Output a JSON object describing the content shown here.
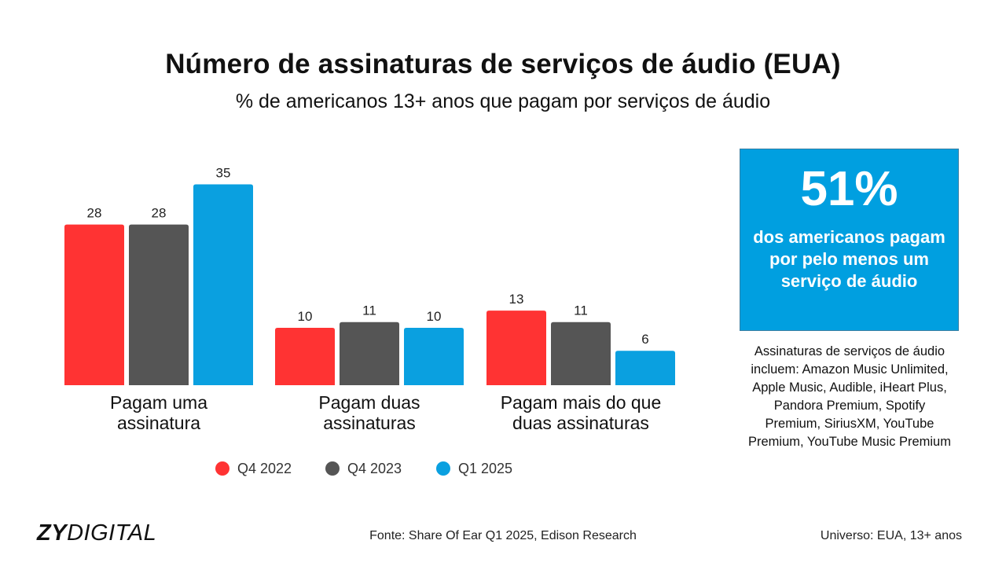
{
  "header": {
    "title": "Número de assinaturas de serviços de áudio (EUA)",
    "subtitle": "% de americanos 13+ anos que pagam por serviços de áudio"
  },
  "chart_data": {
    "type": "bar",
    "categories": [
      [
        "Pagam uma",
        "assinatura"
      ],
      [
        "Pagam duas",
        "assinaturas"
      ],
      [
        "Pagam mais do que",
        "duas assinaturas"
      ]
    ],
    "series": [
      {
        "name": "Q4 2022",
        "color": "#ff3333",
        "values": [
          28,
          10,
          13
        ]
      },
      {
        "name": "Q4 2023",
        "color": "#555555",
        "values": [
          28,
          11,
          11
        ]
      },
      {
        "name": "Q1 2025",
        "color": "#0aa0e0",
        "values": [
          35,
          10,
          6
        ]
      }
    ],
    "ylim": [
      0,
      35
    ],
    "grid": false,
    "legend": "bottom"
  },
  "callout": {
    "big": "51%",
    "text": "dos americanos pagam por pelo menos um serviço de áudio"
  },
  "note": "Assinaturas de serviços de áudio incluem: Amazon Music Unlimited, Apple Music, Audible, iHeart Plus, Pandora Premium, Spotify Premium, SiriusXM, YouTube Premium, YouTube Music Premium",
  "footer": {
    "logo_bold": "ZY",
    "logo_light": "DIGITAL",
    "source": "Fonte: Share Of Ear Q1 2025, Edison Research",
    "universe": "Universo: EUA, 13+ anos"
  }
}
